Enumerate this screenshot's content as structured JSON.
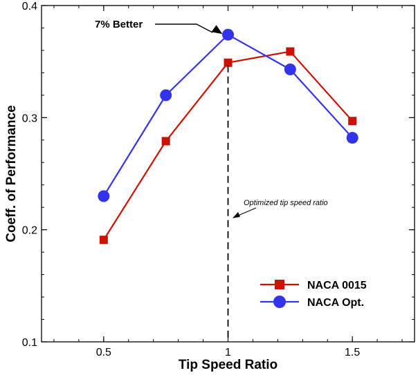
{
  "chart_data": {
    "type": "line",
    "xlabel": "Tip Speed Ratio",
    "ylabel": "Coeff. of Performance",
    "xlim": [
      0.25,
      1.75
    ],
    "ylim": [
      0.1,
      0.4
    ],
    "x_ticks": [
      0.5,
      1,
      1.5
    ],
    "x_tick_labels": [
      "0.5",
      "1",
      "1.5"
    ],
    "y_ticks": [
      0.1,
      0.2,
      0.3,
      0.4
    ],
    "y_tick_labels": [
      "0.1",
      "0.2",
      "0.3",
      "0.4"
    ],
    "grid": false,
    "legend_position": "bottom-right",
    "x": [
      0.5,
      0.75,
      1.0,
      1.25,
      1.5
    ],
    "series": [
      {
        "name": "NACA 0015",
        "color": "#cc1100",
        "marker": "square",
        "values": [
          0.191,
          0.279,
          0.349,
          0.359,
          0.297
        ]
      },
      {
        "name": "NACA Opt.",
        "color": "#3333ee",
        "marker": "circle",
        "values": [
          0.23,
          0.32,
          0.374,
          0.343,
          0.282
        ]
      }
    ],
    "annotations": {
      "better": {
        "text": "7% Better",
        "x": 1.0,
        "y": 0.374
      },
      "optimized": {
        "text": "Optimized tip speed ratio",
        "x": 1.0
      },
      "vline_x": 1.0
    }
  }
}
